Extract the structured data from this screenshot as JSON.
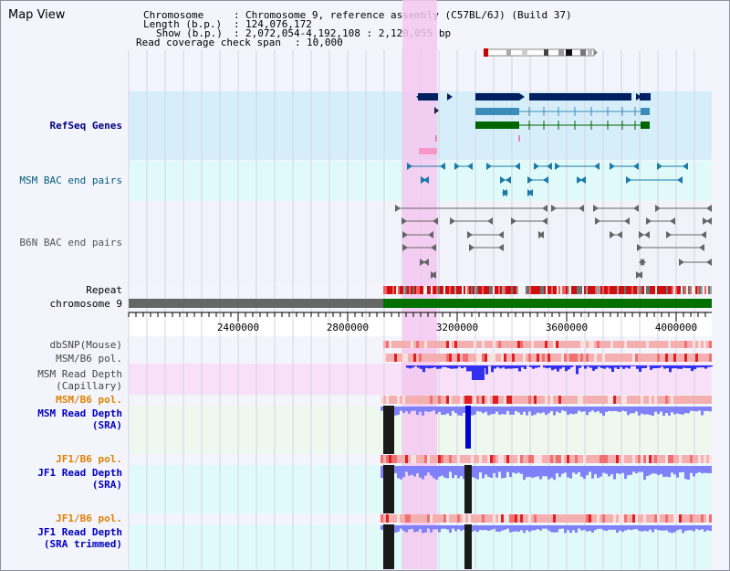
{
  "app": {
    "title": "Map View"
  },
  "info": {
    "chromosome_label": "Chromosome",
    "chromosome_value": "Chromosome 9, reference assembly (C57BL/6J) (Build 37)",
    "length_label": "Length (b.p.)",
    "length_value": "124,076,172",
    "show_label": "Show (b.p.)",
    "show_value": "2,072,054-4,192,108 : 2,120,055 bp",
    "read_cov_label": "Read coverage check span",
    "read_cov_value": "10,000"
  },
  "tracks": {
    "refseq": "RefSeq Genes",
    "msm_bac": "MSM BAC end pairs",
    "b6n_bac": "B6N BAC end pairs",
    "repeat": "Repeat",
    "chromosome": "chromosome 9",
    "dbsnp": "dbSNP(Mouse)",
    "msm_b6_pol_1": "MSM/B6 pol.",
    "msm_read_depth_cap_1": "MSM Read Depth",
    "msm_read_depth_cap_2": "(Capillary)",
    "msm_b6_pol_2": "MSM/B6 pol.",
    "msm_read_depth_sra_1": "MSM Read Depth",
    "msm_read_depth_sra_2": "(SRA)",
    "jf1_b6_pol_1": "JF1/B6 pol.",
    "jf1_read_depth_sra_1": "JF1 Read Depth",
    "jf1_read_depth_sra_2": "(SRA)",
    "jf1_b6_pol_2": "JF1/B6 pol.",
    "jf1_read_depth_trim_1": "JF1 Read Depth",
    "jf1_read_depth_trim_2": "(SRA trimmed)"
  },
  "axis": {
    "ticks": [
      "2400000",
      "2800000",
      "3200000",
      "3600000",
      "4000000"
    ]
  },
  "colors": {
    "refseq_bg": "#d6eefa",
    "bac_bg": "#e0fafa",
    "b6n_bg": "#f2f2fa",
    "highlight": "#f4c8f0",
    "chromosome_gray": "#666666",
    "chromosome_green": "#007000",
    "gene_navy": "#002060",
    "gene_teal": "#3b8cb8",
    "gene_green": "#006600",
    "depth_blue": "#3030f0",
    "depth_light": "#8080f8",
    "pol_pink": "#f4b0b0",
    "pol_red": "#e02020"
  }
}
